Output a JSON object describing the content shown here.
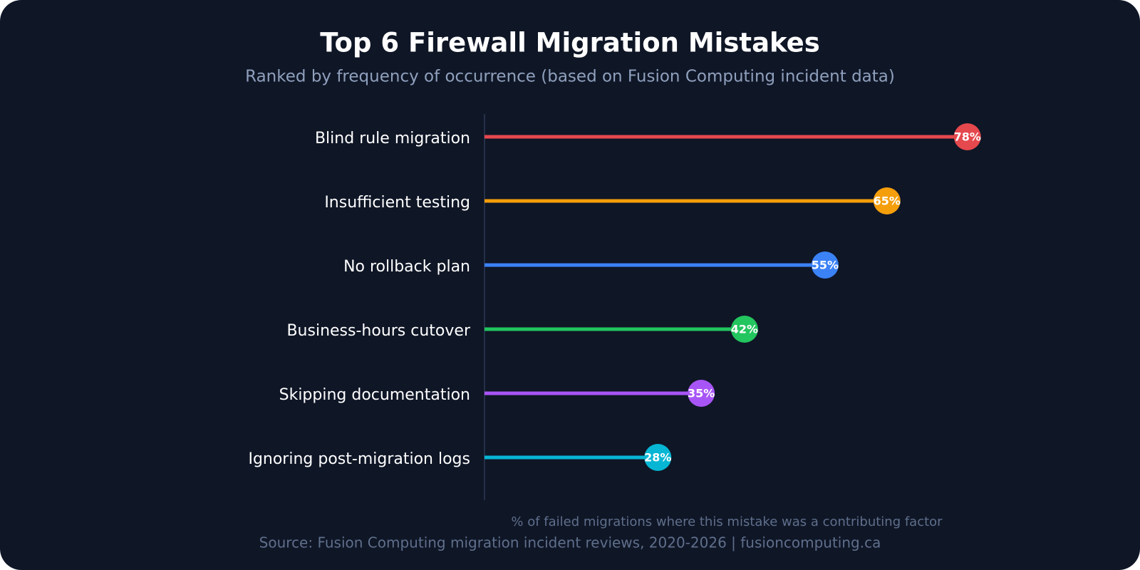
{
  "chart_data": {
    "type": "lollipop",
    "title": "Top 6 Firewall Migration Mistakes",
    "subtitle": "Ranked by frequency of occurrence (based on Fusion Computing incident data)",
    "categories": [
      "Blind rule migration",
      "Insufficient testing",
      "No rollback plan",
      "Business-hours cutover",
      "Skipping documentation",
      "Ignoring post-migration logs"
    ],
    "values": [
      78,
      65,
      55,
      42,
      35,
      28
    ],
    "value_labels": [
      "78%",
      "65%",
      "55%",
      "42%",
      "35%",
      "28%"
    ],
    "colors": [
      "#e5484d",
      "#f59e0b",
      "#3b82f6",
      "#22c55e",
      "#a855f7",
      "#06b6d4"
    ],
    "xlim": [
      0,
      90
    ],
    "x_label": "% of failed migrations where this mistake was a contributing factor",
    "source": "Source: Fusion Computing migration incident reviews, 2020-2026 | fusioncomputing.ca"
  }
}
